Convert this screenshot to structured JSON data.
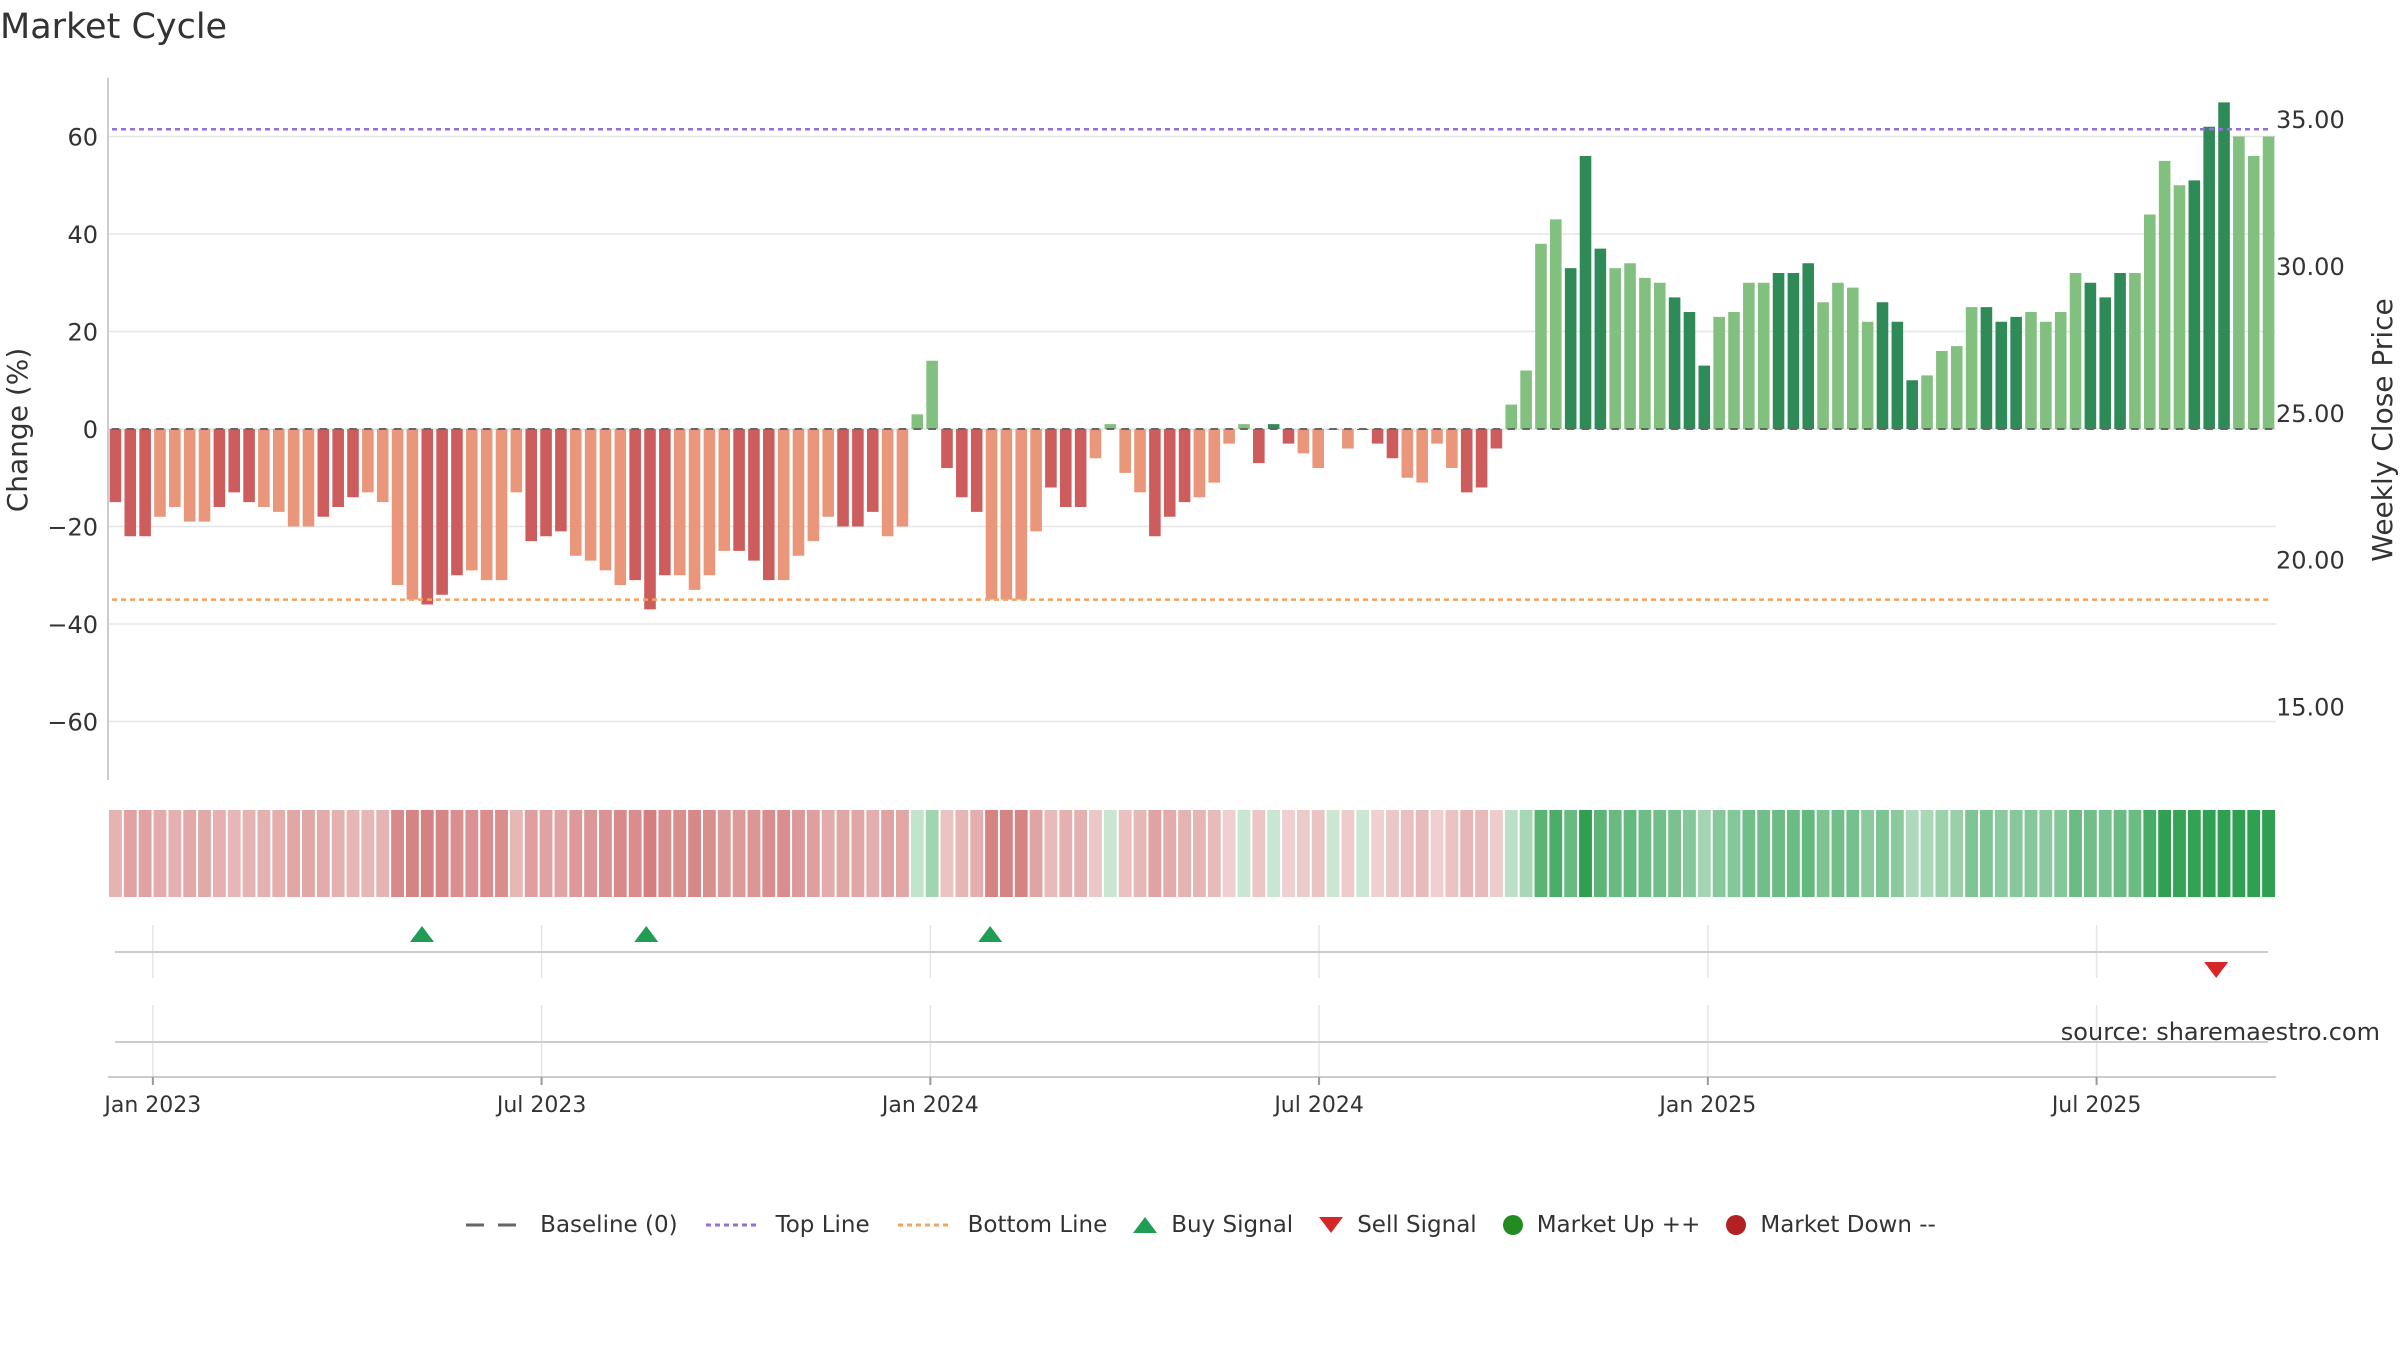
{
  "chart_data": {
    "type": "bar",
    "title": "Market Cycle",
    "ylabel": "Change (%)",
    "y2label": "Weekly Close Price",
    "ylim": [
      -72,
      72
    ],
    "y2lim": [
      12.5,
      36.4
    ],
    "yticks": [
      {
        "label": "60",
        "value": 60
      },
      {
        "label": "40",
        "value": 40
      },
      {
        "label": "20",
        "value": 20
      },
      {
        "label": "0",
        "value": 0
      },
      {
        "label": "−20",
        "value": -20
      },
      {
        "label": "−40",
        "value": -40
      },
      {
        "label": "−60",
        "value": -60
      }
    ],
    "y2ticks": [
      {
        "label": "35.00",
        "value": 35
      },
      {
        "label": "30.00",
        "value": 30
      },
      {
        "label": "25.00",
        "value": 25
      },
      {
        "label": "20.00",
        "value": 20
      },
      {
        "label": "15.00",
        "value": 15
      }
    ],
    "xticks": [
      {
        "label": "Jan 2023",
        "week": 3
      },
      {
        "label": "Jul 2023",
        "week": 29
      },
      {
        "label": "Jan 2024",
        "week": 55
      },
      {
        "label": "Jul 2024",
        "week": 81
      },
      {
        "label": "Jan 2025",
        "week": 107
      },
      {
        "label": "Jul 2025",
        "week": 133
      }
    ],
    "week_range": [
      0,
      145
    ],
    "top_line": 61.5,
    "bottom_line": -35,
    "values": [
      -15,
      -22,
      -22,
      -18,
      -16,
      -19,
      -19,
      -16,
      -13,
      -15,
      -16,
      -17,
      -20,
      -20,
      -18,
      -16,
      -14,
      -13,
      -15,
      -32,
      -35,
      -36,
      -34,
      -30,
      -29,
      -31,
      -31,
      -13,
      -23,
      -22,
      -21,
      -26,
      -27,
      -29,
      -32,
      -31,
      -37,
      -30,
      -30,
      -33,
      -30,
      -25,
      -25,
      -27,
      -31,
      -31,
      -26,
      -23,
      -18,
      -20,
      -20,
      -17,
      -22,
      -20,
      3,
      14,
      -8,
      -14,
      -17,
      -35,
      -35,
      -35,
      -21,
      -12,
      -16,
      -16,
      -6,
      1,
      -9,
      -13,
      -22,
      -18,
      -15,
      -14,
      -11,
      -3,
      1,
      -7,
      1,
      -3,
      -5,
      -8,
      0,
      -4,
      0,
      -3,
      -6,
      -10,
      -11,
      -3,
      -8,
      -13,
      -12,
      -4,
      5,
      12,
      38,
      43,
      33,
      56,
      37,
      33,
      34,
      31,
      30,
      27,
      24,
      13,
      23,
      24,
      30,
      30,
      32,
      32,
      34,
      26,
      30,
      29,
      22,
      26,
      22,
      10,
      11,
      16,
      17,
      25,
      25,
      22,
      23,
      24,
      22,
      24,
      32,
      30,
      27,
      32,
      32,
      44,
      55,
      50,
      51,
      62,
      67,
      60,
      56,
      60
    ],
    "signals": [
      {
        "type": "buy",
        "week": 21
      },
      {
        "type": "buy",
        "week": 36
      },
      {
        "type": "buy",
        "week": 59
      },
      {
        "type": "sell",
        "week": 141
      }
    ],
    "source": "source: sharemaestro.com",
    "legend": [
      {
        "key": "baseline",
        "label": "Baseline (0)"
      },
      {
        "key": "top",
        "label": "Top Line"
      },
      {
        "key": "bottom",
        "label": "Bottom Line"
      },
      {
        "key": "buy",
        "label": "Buy Signal"
      },
      {
        "key": "sell",
        "label": "Sell Signal"
      },
      {
        "key": "up",
        "label": "Market Up ++"
      },
      {
        "key": "down",
        "label": "Market Down --"
      }
    ]
  },
  "colors": {
    "pos_dark": "#2e8b57",
    "pos_light": "#82c07f",
    "neg_dark": "#cd5c5c",
    "neg_light": "#e9967a",
    "top_line": "#9370db",
    "bottom_line": "#f4a460",
    "buy": "#1f9d55",
    "sell": "#d62728",
    "up": "#228b22",
    "down": "#b22222",
    "baseline": "#666666"
  }
}
